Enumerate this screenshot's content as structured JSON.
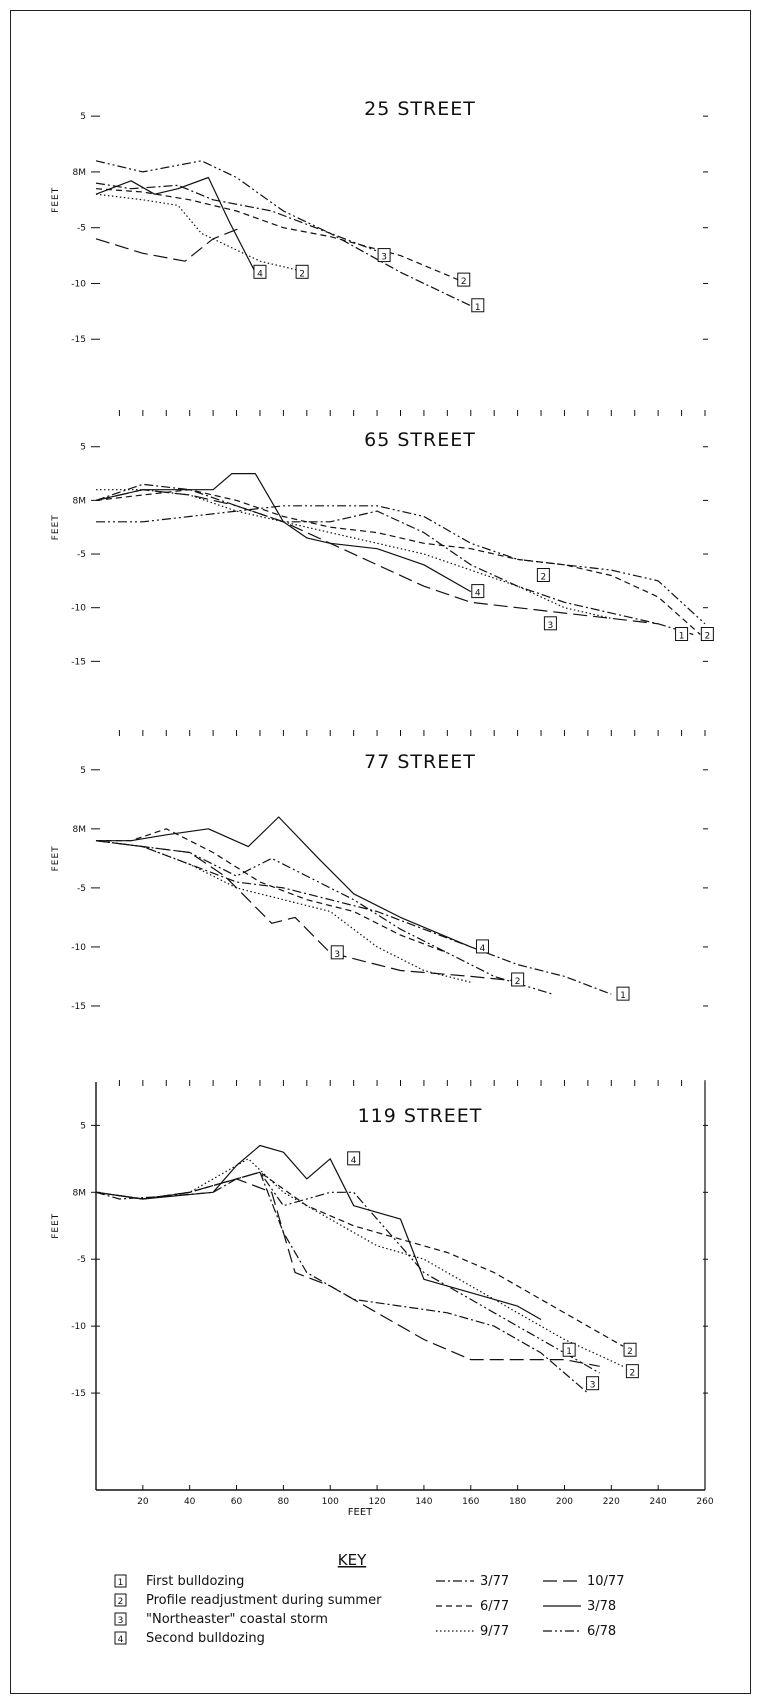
{
  "colors": {
    "ink": "#111111",
    "background": "#ffffff"
  },
  "chart_data": [
    {
      "type": "line",
      "title": "25 STREET",
      "ylabel": "FEET",
      "xlim": [
        0,
        260
      ],
      "ylim": [
        -20,
        6
      ],
      "y_ticks": [
        "5",
        "8M",
        "-5",
        "-10",
        "-15"
      ],
      "grid": false,
      "series": [
        {
          "code": "3/77",
          "style": "dashdot",
          "x": [
            0,
            15,
            35,
            50,
            75,
            100,
            130,
            160
          ],
          "y": [
            -1,
            -1.5,
            -1.2,
            -2.5,
            -3.5,
            -5.5,
            -9,
            -12
          ]
        },
        {
          "code": "6/77",
          "style": "dashed",
          "x": [
            0,
            20,
            40,
            60,
            80,
            100,
            130,
            155
          ],
          "y": [
            -1.5,
            -1.8,
            -2.5,
            -3.5,
            -5,
            -5.8,
            -7.5,
            -9.7
          ]
        },
        {
          "code": "9/77",
          "style": "dotted",
          "x": [
            0,
            20,
            35,
            45,
            55,
            70,
            90
          ],
          "y": [
            -2,
            -2.5,
            -3,
            -5.5,
            -6.5,
            -8,
            -9
          ]
        },
        {
          "code": "10/77",
          "style": "longdash",
          "x": [
            0,
            20,
            38,
            50,
            62
          ],
          "y": [
            -6,
            -7.3,
            -8,
            -6,
            -5
          ]
        },
        {
          "code": "3/78",
          "style": "solid",
          "x": [
            0,
            15,
            25,
            35,
            48,
            57,
            68
          ],
          "y": [
            -2,
            -0.8,
            -2,
            -1.5,
            -0.5,
            -4.5,
            -9
          ]
        },
        {
          "code": "6/78",
          "style": "dashdotdot",
          "x": [
            0,
            20,
            45,
            60,
            80,
            100,
            125
          ],
          "y": [
            1,
            0,
            1,
            -0.5,
            -3.5,
            -5.5,
            -7.5
          ]
        }
      ],
      "annotations": [
        {
          "label": "1",
          "x": 163,
          "y": -12
        },
        {
          "label": "2",
          "x": 157,
          "y": -9.7
        },
        {
          "label": "2",
          "x": 88,
          "y": -9
        },
        {
          "label": "3",
          "x": 123,
          "y": -7.5
        },
        {
          "label": "4",
          "x": 70,
          "y": -9
        }
      ]
    },
    {
      "type": "line",
      "title": "65 STREET",
      "ylabel": "FEET",
      "xlim": [
        0,
        260
      ],
      "ylim": [
        -20,
        6
      ],
      "y_ticks": [
        "5",
        "8M",
        "-5",
        "-10",
        "-15"
      ],
      "grid": false,
      "series": [
        {
          "code": "3/77",
          "style": "dashdot",
          "x": [
            0,
            20,
            40,
            60,
            80,
            100,
            120,
            140,
            160,
            180,
            200,
            220,
            240,
            255
          ],
          "y": [
            0,
            1.5,
            1,
            -0.5,
            -2,
            -2,
            -1,
            -3,
            -6,
            -8,
            -9.5,
            -10.5,
            -11.5,
            -12.5
          ]
        },
        {
          "code": "6/77",
          "style": "dashed",
          "x": [
            0,
            20,
            40,
            60,
            80,
            100,
            120,
            140,
            160,
            180,
            200,
            220,
            240,
            258
          ],
          "y": [
            0,
            0.5,
            1,
            0,
            -1.5,
            -2.5,
            -3,
            -4,
            -4.5,
            -5.5,
            -6,
            -7,
            -9,
            -12.5
          ]
        },
        {
          "code": "9/77",
          "style": "dotted",
          "x": [
            0,
            20,
            40,
            60,
            80,
            100,
            120,
            140,
            160,
            180,
            200,
            220
          ],
          "y": [
            1,
            1,
            0.5,
            -1,
            -2,
            -3,
            -4,
            -5,
            -6.5,
            -8,
            -10,
            -11
          ]
        },
        {
          "code": "10/77",
          "style": "longdash",
          "x": [
            0,
            20,
            40,
            60,
            80,
            100,
            120,
            140,
            160,
            180,
            200,
            220,
            240
          ],
          "y": [
            0,
            1,
            0.5,
            -0.5,
            -2,
            -4,
            -6,
            -8,
            -9.5,
            -10,
            -10.5,
            -11,
            -11.5
          ]
        },
        {
          "code": "3/78",
          "style": "solid",
          "x": [
            0,
            20,
            40,
            50,
            58,
            68,
            80,
            90,
            100,
            120,
            140,
            160
          ],
          "y": [
            0,
            1,
            1,
            1,
            2.5,
            2.5,
            -2,
            -3.5,
            -4,
            -4.5,
            -6,
            -8.5
          ]
        },
        {
          "code": "6/78",
          "style": "dashdotdot",
          "x": [
            0,
            20,
            40,
            60,
            80,
            100,
            120,
            140,
            160,
            180,
            200,
            220,
            240,
            260
          ],
          "y": [
            -2,
            -2,
            -1.5,
            -1,
            -0.5,
            -0.5,
            -0.5,
            -1.5,
            -4,
            -5.5,
            -6,
            -6.5,
            -7.5,
            -11.5
          ]
        }
      ],
      "annotations": [
        {
          "label": "4",
          "x": 163,
          "y": -8.5
        },
        {
          "label": "2",
          "x": 191,
          "y": -7
        },
        {
          "label": "3",
          "x": 194,
          "y": -11.5
        },
        {
          "label": "1",
          "x": 250,
          "y": -12.5
        },
        {
          "label": "2",
          "x": 261,
          "y": -12.5
        }
      ]
    },
    {
      "type": "line",
      "title": "77 STREET",
      "ylabel": "FEET",
      "xlim": [
        0,
        260
      ],
      "ylim": [
        -20,
        6
      ],
      "y_ticks": [
        "5",
        "8M",
        "-5",
        "-10",
        "-15"
      ],
      "grid": false,
      "series": [
        {
          "code": "3/77",
          "style": "dashdot",
          "x": [
            0,
            20,
            40,
            60,
            80,
            100,
            120,
            140,
            160,
            180,
            200,
            220
          ],
          "y": [
            -1,
            -1.5,
            -3,
            -4.5,
            -5,
            -6,
            -7,
            -8.5,
            -10,
            -11.5,
            -12.5,
            -14
          ]
        },
        {
          "code": "6/77",
          "style": "dashed",
          "x": [
            0,
            15,
            30,
            50,
            70,
            90,
            110,
            130,
            150
          ],
          "y": [
            -1,
            -1,
            0,
            -2,
            -4.5,
            -6,
            -7,
            -9,
            -10.5
          ]
        },
        {
          "code": "9/77",
          "style": "dotted",
          "x": [
            0,
            20,
            40,
            60,
            80,
            100,
            120,
            140,
            160
          ],
          "y": [
            -1,
            -1.5,
            -3,
            -5,
            -6,
            -7,
            -10,
            -12,
            -13
          ]
        },
        {
          "code": "10/77",
          "style": "longdash",
          "x": [
            0,
            20,
            40,
            55,
            65,
            75,
            85,
            100,
            130,
            160,
            185
          ],
          "y": [
            -1,
            -1.5,
            -2,
            -4,
            -6,
            -8,
            -7.5,
            -10.5,
            -12,
            -12.5,
            -13
          ]
        },
        {
          "code": "3/78",
          "style": "solid",
          "x": [
            0,
            15,
            30,
            48,
            65,
            78,
            95,
            110,
            130,
            160
          ],
          "y": [
            -1,
            -1,
            -0.5,
            0,
            -1.5,
            1,
            -2.5,
            -5.5,
            -7.5,
            -10
          ]
        },
        {
          "code": "6/78",
          "style": "dashdotdot",
          "x": [
            0,
            20,
            40,
            60,
            75,
            90,
            110,
            130,
            150,
            170,
            195
          ],
          "y": [
            -1,
            -1.5,
            -2,
            -4,
            -2.5,
            -4,
            -6,
            -8.5,
            -10.5,
            -12.5,
            -14
          ]
        }
      ],
      "annotations": [
        {
          "label": "3",
          "x": 103,
          "y": -10.5
        },
        {
          "label": "4",
          "x": 165,
          "y": -10
        },
        {
          "label": "2",
          "x": 180,
          "y": -12.8
        },
        {
          "label": "1",
          "x": 225,
          "y": -14
        }
      ]
    },
    {
      "type": "line",
      "title": "119 STREET",
      "xlabel": "FEET",
      "ylabel": "FEET",
      "xlim": [
        0,
        260
      ],
      "ylim": [
        -20,
        6
      ],
      "x_ticks": [
        "20",
        "40",
        "60",
        "80",
        "100",
        "120",
        "140",
        "160",
        "180",
        "200",
        "220",
        "240",
        "260"
      ],
      "y_ticks": [
        "5",
        "8M",
        "-5",
        "-10",
        "-15"
      ],
      "grid": false,
      "series": [
        {
          "code": "3/77",
          "style": "dashdot",
          "x": [
            0,
            10,
            30,
            50,
            60,
            70,
            80,
            90,
            110,
            130,
            150,
            170,
            190,
            210
          ],
          "y": [
            0,
            -0.5,
            -0.3,
            0,
            1,
            1.5,
            -3,
            -6,
            -8,
            -8.5,
            -9,
            -10,
            -12,
            -15
          ]
        },
        {
          "code": "6/77",
          "style": "dashed",
          "x": [
            0,
            20,
            40,
            60,
            70,
            90,
            110,
            130,
            150,
            170,
            190,
            210,
            225
          ],
          "y": [
            0,
            -0.5,
            0,
            1,
            1.5,
            -1,
            -2.5,
            -3.5,
            -4.5,
            -6,
            -8,
            -10,
            -11.5
          ]
        },
        {
          "code": "9/77",
          "style": "dotted",
          "x": [
            0,
            20,
            40,
            55,
            65,
            80,
            100,
            120,
            140,
            160,
            180,
            200,
            225
          ],
          "y": [
            0,
            -0.5,
            0,
            1.5,
            2.5,
            0,
            -2,
            -4,
            -5,
            -7,
            -9,
            -11,
            -13
          ]
        },
        {
          "code": "10/77",
          "style": "longdash",
          "x": [
            0,
            20,
            40,
            60,
            75,
            85,
            100,
            120,
            140,
            160,
            180,
            200,
            215
          ],
          "y": [
            0,
            -0.5,
            0,
            1,
            0,
            -6,
            -7,
            -9,
            -11,
            -12.5,
            -12.5,
            -12.5,
            -13
          ]
        },
        {
          "code": "3/78",
          "style": "solid",
          "x": [
            0,
            20,
            50,
            60,
            70,
            80,
            90,
            100,
            110,
            130,
            140,
            160,
            180,
            190
          ],
          "y": [
            0,
            -0.5,
            0,
            2,
            3.5,
            3,
            1,
            2.5,
            -1,
            -2,
            -6.5,
            -7.5,
            -8.5,
            -9.5
          ]
        },
        {
          "code": "6/78",
          "style": "dashdotdot",
          "x": [
            0,
            20,
            40,
            60,
            70,
            80,
            100,
            110,
            120,
            140,
            160,
            180,
            200,
            215
          ],
          "y": [
            0,
            -0.5,
            0,
            1,
            1.5,
            -1,
            0,
            0,
            -2,
            -6,
            -8,
            -10,
            -12,
            -13.5
          ]
        }
      ],
      "annotations": [
        {
          "label": "4",
          "x": 110,
          "y": 2.5
        },
        {
          "label": "1",
          "x": 202,
          "y": -11.8
        },
        {
          "label": "2",
          "x": 228,
          "y": -11.8
        },
        {
          "label": "2",
          "x": 229,
          "y": -13.4
        },
        {
          "label": "3",
          "x": 212,
          "y": -14.3
        }
      ]
    }
  ],
  "key": {
    "title": "KEY",
    "events": [
      {
        "num": "1",
        "text": "First bulldozing"
      },
      {
        "num": "2",
        "text": "Profile readjustment during summer"
      },
      {
        "num": "3",
        "text": "\"Northeaster\" coastal storm"
      },
      {
        "num": "4",
        "text": "Second bulldozing"
      }
    ],
    "dates": [
      {
        "label": "3/77",
        "style": "dashdot"
      },
      {
        "label": "6/77",
        "style": "dashed"
      },
      {
        "label": "9/77",
        "style": "dotted"
      },
      {
        "label": "10/77",
        "style": "longdash"
      },
      {
        "label": "3/78",
        "style": "solid"
      },
      {
        "label": "6/78",
        "style": "dashdotdot"
      }
    ]
  }
}
